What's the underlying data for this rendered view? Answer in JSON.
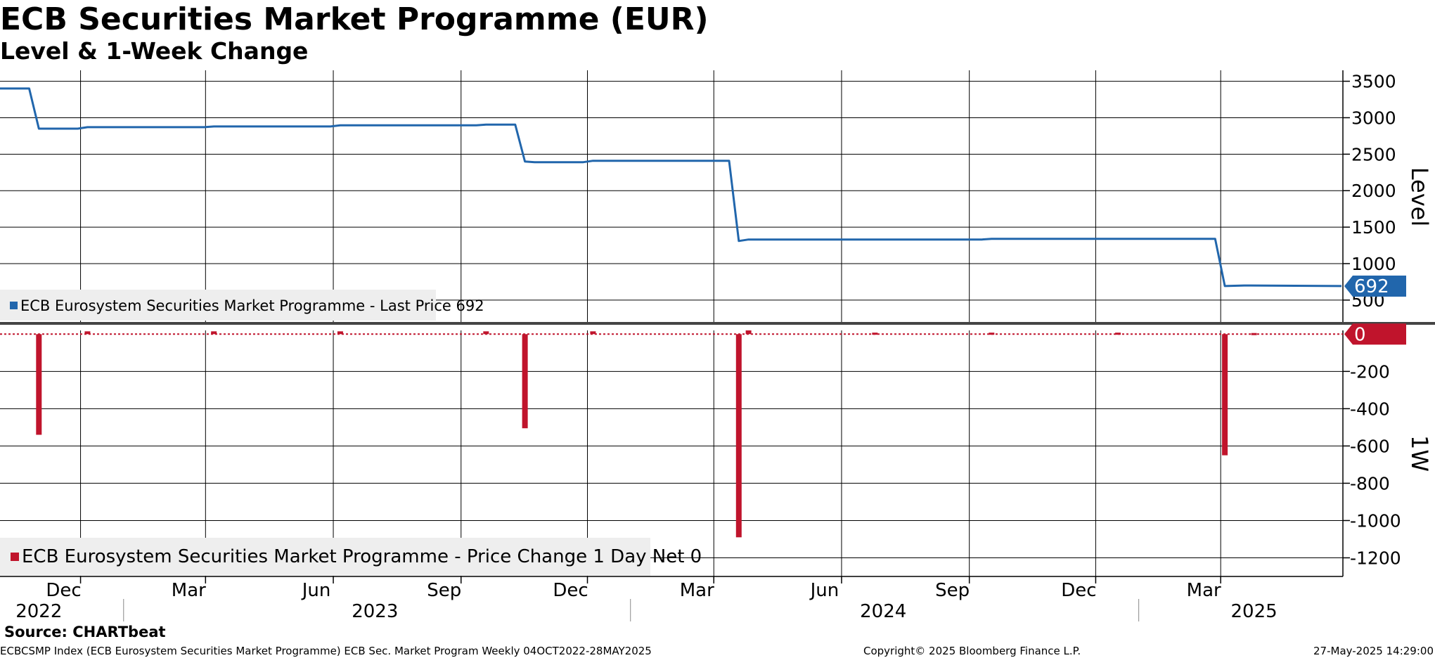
{
  "header": {
    "title": "ECB Securities Market Programme (EUR)",
    "subtitle": "Level & 1-Week Change"
  },
  "footer": {
    "source": "Source: CHARTbeat",
    "ticker_info": "ECBCSMP Index (ECB Eurosystem Securities Market Programme) ECB Sec. Market Program  Weekly 04OCT2022-28MAY2025",
    "copyright": "Copyright© 2025 Bloomberg Finance L.P.",
    "timestamp": "27-May-2025 14:29:00"
  },
  "colors": {
    "level_line": "#2166ac",
    "change_bar": "#c0142c",
    "grid": "#000000",
    "legend_bg": "#eeeeee",
    "separator": "#444444"
  },
  "chart_data": [
    {
      "type": "line",
      "panel": "top",
      "ylabel": "Level",
      "ylim": [
        200,
        3650
      ],
      "yticks": [
        500,
        1000,
        1500,
        2000,
        2500,
        3000,
        3500
      ],
      "xlim": [
        "2022-10-04",
        "2025-05-28"
      ],
      "legend": "ECB Eurosystem Securities Market Programme - Last Price 692",
      "last_value_label": "692",
      "last_value": 692,
      "series": [
        {
          "name": "ECB Eurosystem Securities Market Programme - Last Price 692",
          "x": [
            "2022-10-04",
            "2022-10-25",
            "2022-11-01",
            "2022-11-29",
            "2022-12-06",
            "2023-02-28",
            "2023-03-07",
            "2023-05-30",
            "2023-06-06",
            "2023-09-12",
            "2023-09-19",
            "2023-10-10",
            "2023-10-17",
            "2023-10-24",
            "2023-11-28",
            "2023-12-05",
            "2024-03-12",
            "2024-03-19",
            "2024-03-26",
            "2024-09-10",
            "2024-09-17",
            "2025-02-25",
            "2025-03-04",
            "2025-03-18",
            "2025-05-27"
          ],
          "y": [
            3400,
            3400,
            2850,
            2850,
            2870,
            2870,
            2880,
            2880,
            2895,
            2895,
            2905,
            2905,
            2400,
            2390,
            2390,
            2410,
            2410,
            1310,
            1330,
            1330,
            1340,
            1340,
            692,
            700,
            692
          ]
        }
      ]
    },
    {
      "type": "bar",
      "panel": "bottom",
      "ylabel": "1W",
      "ylim": [
        -1300,
        20
      ],
      "yticks": [
        -1200,
        -1000,
        -800,
        -600,
        -400,
        -200
      ],
      "xlim": [
        "2022-10-04",
        "2025-05-28"
      ],
      "legend": "ECB Eurosystem Securities Market Programme - Price Change 1 Day Net 0",
      "last_value_label": "0",
      "last_value": 0,
      "series": [
        {
          "name": "ECB Eurosystem Securities Market Programme - Price Change 1 Day Net 0",
          "x": [
            "2022-11-01",
            "2022-12-06",
            "2023-03-07",
            "2023-06-06",
            "2023-09-19",
            "2023-10-17",
            "2023-12-05",
            "2024-03-19",
            "2024-03-26",
            "2024-06-25",
            "2024-09-17",
            "2024-12-17",
            "2025-03-04",
            "2025-03-25"
          ],
          "y": [
            -540,
            15,
            15,
            15,
            15,
            -505,
            15,
            -1090,
            20,
            8,
            8,
            8,
            -650,
            6
          ]
        }
      ],
      "x_tick_labels": [
        "Dec",
        "Mar",
        "Jun",
        "Sep",
        "Dec",
        "Mar",
        "Jun",
        "Sep",
        "Dec",
        "Mar"
      ],
      "x_tick_dates": [
        "2022-12-01",
        "2023-03-01",
        "2023-06-01",
        "2023-09-01",
        "2023-12-01",
        "2024-03-01",
        "2024-06-01",
        "2024-09-01",
        "2024-12-01",
        "2025-03-01"
      ],
      "year_labels": [
        "2022",
        "2023",
        "2024",
        "2025"
      ],
      "year_dates": [
        "2022-11-01",
        "2023-07-01",
        "2024-07-01",
        "2025-03-25"
      ],
      "year_boundaries": [
        "2023-01-01",
        "2024-01-01",
        "2025-01-01"
      ]
    }
  ]
}
